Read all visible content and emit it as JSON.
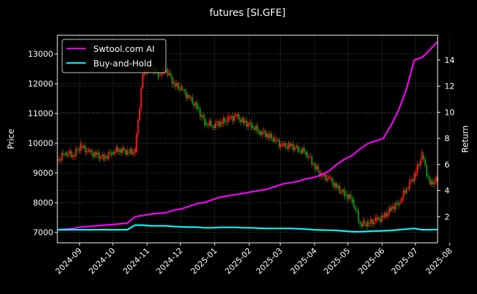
{
  "chart_data": {
    "type": "line",
    "title": "futures [SI.GFE]",
    "ylabel": "Price",
    "y2label": "Return",
    "ylim": [
      6650,
      13630
    ],
    "y2lim": [
      0,
      15.9
    ],
    "yticks": [
      7000,
      8000,
      9000,
      10000,
      11000,
      12000,
      13000
    ],
    "y2ticks": [
      2,
      4,
      6,
      8,
      10,
      12,
      14
    ],
    "xticks": [
      "2024-09",
      "2024-10",
      "2024-11",
      "2024-12",
      "2025-01",
      "2025-02",
      "2025-03",
      "2025-04",
      "2025-05",
      "2025-06",
      "2025-07",
      "2025-08"
    ],
    "grid": true,
    "legend_position": "top-left",
    "x_start": "2024-08-12",
    "week_step_days": 7,
    "price_weekly_close": [
      9400,
      9700,
      9600,
      9900,
      9700,
      9600,
      9500,
      9700,
      9800,
      9700,
      9700,
      12300,
      12600,
      12300,
      12500,
      12000,
      11800,
      11500,
      11200,
      10700,
      10600,
      10700,
      10800,
      10900,
      10700,
      10600,
      10400,
      10300,
      10100,
      9900,
      9900,
      9800,
      9700,
      9300,
      8900,
      8800,
      8500,
      8300,
      8100,
      7300,
      7300,
      7400,
      7500,
      7800,
      8000,
      8500,
      8900,
      9600,
      8600,
      8800
    ],
    "series": [
      {
        "name": "Swtool.com AI",
        "color": "#ff00ff",
        "values": [
          1.0,
          1.05,
          1.1,
          1.2,
          1.25,
          1.3,
          1.35,
          1.4,
          1.45,
          1.5,
          2.0,
          2.1,
          2.2,
          2.25,
          2.3,
          2.5,
          2.6,
          2.8,
          3.0,
          3.1,
          3.3,
          3.5,
          3.6,
          3.7,
          3.8,
          3.9,
          4.0,
          4.1,
          4.3,
          4.5,
          4.6,
          4.7,
          4.9,
          5.0,
          5.2,
          5.5,
          6.0,
          6.4,
          6.7,
          7.2,
          7.6,
          7.8,
          8.0,
          9.0,
          10.2,
          11.8,
          14.0,
          14.2,
          14.8,
          15.4
        ]
      },
      {
        "name": "Buy-and-Hold",
        "color": "#00ffff",
        "values": [
          1.0,
          1.0,
          1.0,
          1.0,
          1.0,
          1.0,
          1.0,
          1.0,
          1.0,
          1.0,
          1.35,
          1.35,
          1.3,
          1.3,
          1.3,
          1.25,
          1.22,
          1.2,
          1.2,
          1.15,
          1.15,
          1.18,
          1.18,
          1.18,
          1.15,
          1.15,
          1.12,
          1.1,
          1.1,
          1.1,
          1.1,
          1.08,
          1.05,
          1.0,
          0.98,
          0.97,
          0.95,
          0.9,
          0.85,
          0.85,
          0.88,
          0.9,
          0.92,
          0.95,
          1.0,
          1.05,
          1.1,
          1.0,
          1.0,
          1.02
        ]
      }
    ],
    "candle_up_color": "#ff1a1a",
    "candle_down_color": "#1a8c1a"
  }
}
